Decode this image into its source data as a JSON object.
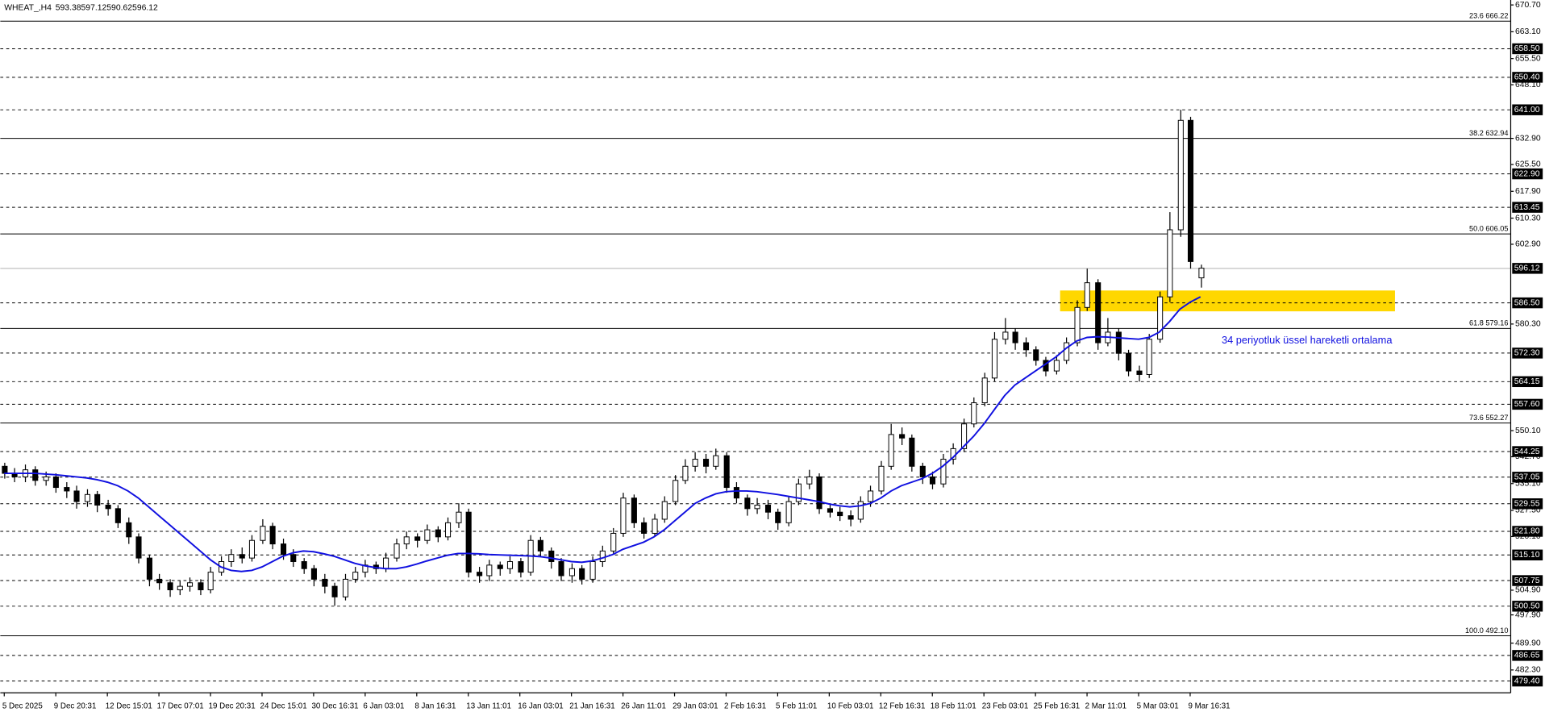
{
  "chart_data": {
    "type": "candlestick",
    "symbol": "WHEAT_,H4",
    "header_ohlc": [
      593.38,
      597.12,
      590.62,
      596.12
    ],
    "categories": [
      "5 Dec 2025",
      null,
      null,
      null,
      null,
      "9 Dec 20:31",
      null,
      null,
      null,
      null,
      "12 Dec 15:01",
      null,
      null,
      null,
      null,
      "17 Dec 07:01",
      null,
      null,
      null,
      null,
      "19 Dec 20:31",
      null,
      null,
      null,
      null,
      "24 Dec 15:01",
      null,
      null,
      null,
      null,
      "30 Dec 16:31",
      null,
      null,
      null,
      null,
      "6 Jan 03:01",
      null,
      null,
      null,
      null,
      "8 Jan 16:31",
      null,
      null,
      null,
      null,
      "13 Jan 11:01",
      null,
      null,
      null,
      null,
      "16 Jan 03:01",
      null,
      null,
      null,
      null,
      "21 Jan 16:31",
      null,
      null,
      null,
      null,
      "26 Jan 11:01",
      null,
      null,
      null,
      null,
      "29 Jan 03:01",
      null,
      null,
      null,
      null,
      "2 Feb 16:31",
      null,
      null,
      null,
      null,
      "5 Feb 11:01",
      null,
      null,
      null,
      null,
      "10 Feb 03:01",
      null,
      null,
      null,
      null,
      "12 Feb 16:31",
      null,
      null,
      null,
      null,
      "18 Feb 11:01",
      null,
      null,
      null,
      null,
      "23 Feb 03:01",
      null,
      null,
      null,
      null,
      "25 Feb 16:31",
      null,
      null,
      null,
      null,
      "2 Mar 11:01",
      null,
      null,
      null,
      null,
      "5 Mar 03:01",
      null,
      null,
      null,
      null,
      "9 Mar 16:31",
      null
    ],
    "open": [
      540,
      538,
      537,
      539,
      536,
      537,
      534,
      533,
      530,
      532,
      529,
      528,
      524,
      520,
      514,
      508,
      507,
      505,
      506,
      507,
      505,
      510,
      513,
      515,
      514,
      519,
      523,
      518,
      515,
      513,
      511,
      508,
      506,
      503,
      508,
      510,
      512,
      511,
      514,
      518,
      520,
      519,
      522,
      520,
      524,
      527,
      510,
      509,
      512,
      511,
      513,
      510,
      519,
      516,
      513,
      509,
      511,
      508,
      513,
      516,
      521,
      531,
      524,
      521,
      525,
      530,
      536,
      540,
      542,
      540,
      543,
      534,
      531,
      528,
      529,
      527,
      524,
      530,
      535,
      537,
      528,
      527,
      526,
      525,
      530,
      533,
      540,
      549,
      548,
      540,
      537,
      535,
      542,
      545,
      552,
      558,
      565,
      576,
      578,
      575,
      573,
      570,
      567,
      570,
      575,
      585,
      592,
      575,
      578,
      572,
      567,
      566,
      576,
      588,
      607,
      638,
      593.38
    ],
    "high": [
      541,
      539.5,
      540.5,
      540,
      538.5,
      538,
      535.5,
      534.5,
      533.5,
      533,
      530.5,
      529,
      525.5,
      521,
      515,
      509.5,
      508,
      507.5,
      508.5,
      508,
      511.5,
      514.5,
      516.5,
      517,
      520.5,
      525,
      524,
      519.5,
      516.5,
      514,
      512,
      509.5,
      507,
      509.5,
      511.5,
      513.5,
      513,
      515.5,
      519.5,
      521.5,
      521,
      523.5,
      523,
      525.5,
      529.5,
      528,
      511.5,
      513.5,
      513,
      514.5,
      514,
      520.5,
      520,
      517,
      514,
      512.5,
      512,
      514.5,
      517.5,
      522.5,
      532.5,
      532,
      525.5,
      526.5,
      531.5,
      537.5,
      542,
      544,
      543.5,
      545,
      544,
      535.5,
      532,
      531,
      530.5,
      528,
      531.5,
      536.5,
      539,
      538,
      529.5,
      528.5,
      527.5,
      531.5,
      534.5,
      541.5,
      552,
      551,
      549,
      541,
      538.5,
      543.5,
      546.5,
      553.5,
      559.5,
      566.5,
      578,
      582,
      579,
      576.5,
      574,
      571,
      571.5,
      576.5,
      587,
      596,
      593,
      582,
      579,
      573,
      568.5,
      577.5,
      589.5,
      612,
      641,
      639,
      597.12
    ],
    "low": [
      536.5,
      535.5,
      535.5,
      534.5,
      534.5,
      532.5,
      531,
      528,
      528.5,
      527,
      526,
      522.5,
      518,
      512.5,
      506,
      505,
      503,
      503.5,
      504.5,
      503.5,
      504,
      509,
      511.5,
      512.5,
      513,
      518,
      516.5,
      513.5,
      511.5,
      509.5,
      506,
      504,
      500.5,
      502,
      507,
      508.5,
      509.5,
      510,
      513,
      516.5,
      517,
      518,
      518.5,
      519,
      522.5,
      508.5,
      507,
      507.5,
      509,
      509.5,
      508.5,
      509,
      514.5,
      511,
      507.5,
      507,
      506.5,
      507,
      511.5,
      515,
      520,
      522.5,
      519.5,
      520,
      524,
      529,
      535,
      538.5,
      538,
      539,
      532.5,
      529.5,
      526,
      526.5,
      525,
      522,
      523,
      529,
      533.5,
      526.5,
      525.5,
      524.5,
      523,
      524,
      528.5,
      532,
      539,
      546,
      538.5,
      535,
      533.5,
      534,
      540.5,
      544,
      551,
      557,
      564,
      574.5,
      573,
      571,
      568.5,
      565.5,
      566,
      569,
      574,
      584,
      573,
      574,
      570,
      565.5,
      564,
      565,
      575,
      586.5,
      605,
      596,
      590.62
    ],
    "close": [
      538,
      537,
      539,
      536,
      537,
      534,
      533,
      530,
      532,
      529,
      528,
      524,
      520,
      514,
      508,
      507,
      505,
      506,
      507,
      505,
      510,
      513,
      515,
      514,
      519,
      523,
      518,
      515,
      513,
      511,
      508,
      506,
      503,
      508,
      510,
      512,
      511,
      514,
      518,
      520,
      519,
      522,
      520,
      524,
      527,
      510,
      509,
      512,
      511,
      513,
      510,
      519,
      516,
      513,
      509,
      511,
      508,
      513,
      516,
      521,
      531,
      524,
      521,
      525,
      530,
      536,
      540,
      542,
      540,
      543,
      534,
      531,
      528,
      529,
      527,
      524,
      530,
      535,
      537,
      528,
      527,
      526,
      525,
      530,
      533,
      540,
      549,
      548,
      540,
      537,
      535,
      542,
      545,
      552,
      558,
      565,
      576,
      578,
      575,
      573,
      570,
      567,
      570,
      575,
      585,
      592,
      575,
      578,
      572,
      567,
      566,
      576,
      588,
      607,
      638,
      598,
      596.12
    ],
    "up_color": "#ffffff",
    "down_color": "#000000",
    "overlay": {
      "color": "#1010e0",
      "values": [
        538,
        538,
        538,
        538,
        537.8,
        537.6,
        537.3,
        537,
        536.7,
        536.2,
        535.5,
        534.5,
        533,
        531,
        528.5,
        526,
        523.5,
        521,
        518.5,
        516,
        513.5,
        511.5,
        510.5,
        510.2,
        510.5,
        511.5,
        513,
        514.5,
        515.5,
        516,
        515.8,
        515.2,
        514.5,
        513.5,
        512.5,
        511.8,
        511.3,
        511,
        511,
        511.5,
        512.3,
        513.2,
        514,
        514.8,
        515.3,
        515.3,
        515.2,
        515,
        514.9,
        514.8,
        514.7,
        514.6,
        514.4,
        514,
        513.5,
        513,
        512.8,
        513.2,
        514,
        515,
        516.5,
        517.5,
        518.5,
        520,
        522,
        524.5,
        527,
        529.5,
        531,
        532.2,
        532.8,
        533,
        533,
        532.8,
        532.4,
        532,
        531.5,
        531,
        530.5,
        530,
        529.3,
        528.8,
        528.5,
        528.8,
        529.5,
        531,
        533,
        534.5,
        535.5,
        536.5,
        538,
        540,
        542.5,
        545.5,
        548.5,
        552,
        556,
        560,
        563,
        565,
        567,
        569,
        571,
        573.5,
        575.5,
        576.5,
        576.7,
        576.6,
        576.4,
        576.2,
        576,
        576.5,
        578,
        581,
        584.5,
        586.5,
        588
      ]
    },
    "annotation": "34 periyotluk üssel hareketli ortalama",
    "ylim": [
      475.95,
      672.1
    ],
    "yticks": [
      {
        "value": 670.7,
        "label": "670.70"
      },
      {
        "value": 663.1,
        "label": "663.10"
      },
      {
        "value": 655.5,
        "label": "655.50"
      },
      {
        "value": 648.1,
        "label": "648.10"
      },
      {
        "value": 632.9,
        "label": "632.90"
      },
      {
        "value": 625.5,
        "label": "625.50"
      },
      {
        "value": 617.9,
        "label": "617.90"
      },
      {
        "value": 610.3,
        "label": "610.30"
      },
      {
        "value": 602.9,
        "label": "602.90"
      },
      {
        "value": 580.3,
        "label": "580.30"
      },
      {
        "value": 550.1,
        "label": "550.10"
      },
      {
        "value": 542.7,
        "label": "542.70"
      },
      {
        "value": 535.1,
        "label": "535.10"
      },
      {
        "value": 527.5,
        "label": "527.50"
      },
      {
        "value": 520.1,
        "label": "520.10"
      },
      {
        "value": 504.9,
        "label": "504.90"
      },
      {
        "value": 497.9,
        "label": "497.90"
      },
      {
        "value": 489.9,
        "label": "489.90"
      },
      {
        "value": 482.3,
        "label": "482.30"
      }
    ],
    "hlines": [
      {
        "value": 658.5,
        "label": "658.50"
      },
      {
        "value": 650.4,
        "label": "650.40"
      },
      {
        "value": 641,
        "label": "641.00"
      },
      {
        "value": 622.9,
        "label": "622.90"
      },
      613.45,
      {
        "value": 586.5,
        "label": "586.50"
      },
      {
        "value": 572.3,
        "label": "572.30"
      },
      564.15,
      {
        "value": 557.6,
        "label": "557.60"
      },
      544.25,
      537.05,
      529.55,
      {
        "value": 521.8,
        "label": "521.80"
      },
      {
        "value": 515.1,
        "label": "515.10"
      },
      507.75,
      {
        "value": 500.5,
        "label": "500.50"
      },
      486.65,
      {
        "value": 479.4,
        "label": "479.40"
      }
    ],
    "fib_levels": [
      {
        "value": 666.22,
        "label": "23.6 666.22"
      },
      {
        "value": 632.94,
        "label": "38.2 632.94"
      },
      {
        "value": 606.05,
        "label": "50.0 606.05"
      },
      {
        "value": 579.16,
        "label": "61.8 579.16"
      },
      {
        "value": 552.27,
        "label": "73.6 552.27"
      },
      {
        "value": 492.1,
        "label": "100.0 492.10"
      }
    ],
    "last_price": 596.12,
    "zone": {
      "low": 583.9,
      "high": 589.8,
      "color": "#ffd700"
    }
  }
}
